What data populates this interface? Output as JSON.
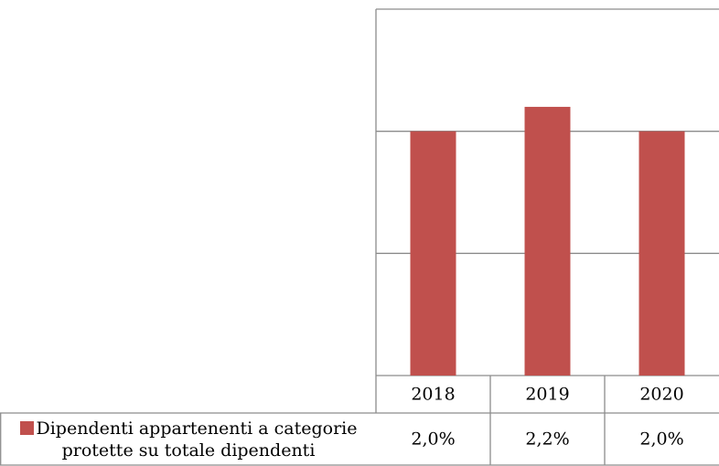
{
  "chart_data": {
    "type": "bar",
    "categories": [
      "2018",
      "2019",
      "2020"
    ],
    "series": [
      {
        "name": "Dipendenti appartenenti a categorie protette su totale dipendenti",
        "color": "#c0504d",
        "values": [
          2.0,
          2.2,
          2.0
        ],
        "value_labels": [
          "2,0%",
          "2,2%",
          "2,0%"
        ]
      }
    ],
    "ylim": [
      0,
      3
    ],
    "yticks": [
      0,
      1,
      2,
      3
    ],
    "grid": true
  }
}
